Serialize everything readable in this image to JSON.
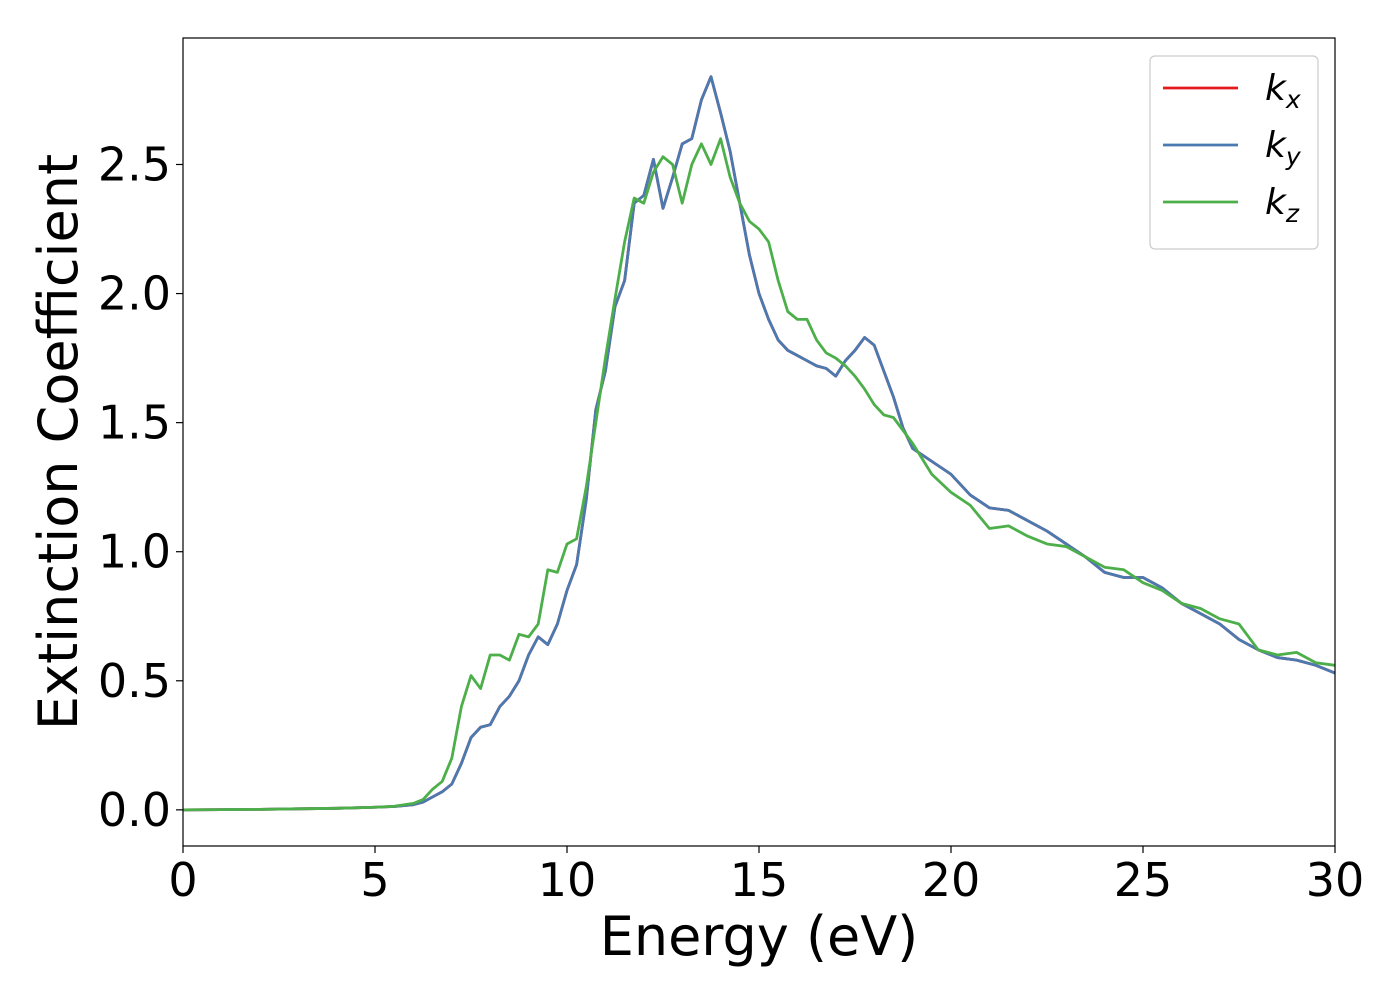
{
  "chart_data": {
    "type": "line",
    "x_label": "Energy (eV)",
    "y_label": "Extinction Coefficient",
    "xlim": [
      0,
      30
    ],
    "ylim": [
      -0.14,
      2.99
    ],
    "xticks": [
      0,
      5,
      10,
      15,
      20,
      25,
      30
    ],
    "yticks": [
      {
        "value": 0,
        "label": "0.0"
      },
      0.5,
      {
        "value": 1,
        "label": "1.0"
      },
      1.5,
      {
        "value": 2,
        "label": "2.0"
      },
      2.5
    ],
    "legend": "upper right",
    "x": [
      0,
      1,
      2,
      3,
      4,
      5,
      5.5,
      6,
      6.25,
      6.5,
      6.75,
      7,
      7.25,
      7.5,
      7.75,
      8,
      8.25,
      8.5,
      8.75,
      9,
      9.25,
      9.5,
      9.75,
      10,
      10.25,
      10.5,
      10.75,
      11,
      11.25,
      11.5,
      11.75,
      12,
      12.25,
      12.5,
      12.75,
      13,
      13.25,
      13.5,
      13.75,
      14,
      14.25,
      14.5,
      14.75,
      15,
      15.25,
      15.5,
      15.75,
      16,
      16.25,
      16.5,
      16.75,
      17,
      17.25,
      17.5,
      17.75,
      18,
      18.25,
      18.5,
      18.75,
      19,
      19.5,
      20,
      20.5,
      21,
      21.5,
      22,
      22.5,
      23,
      23.5,
      24,
      24.5,
      25,
      25.5,
      26,
      26.5,
      27,
      27.5,
      28,
      28.5,
      29,
      29.5,
      30
    ],
    "series": [
      {
        "name": "kx",
        "color": "#e41a1c",
        "values": [
          0,
          0.001,
          0.002,
          0.004,
          0.006,
          0.01,
          0.013,
          0.02,
          0.03,
          0.05,
          0.07,
          0.1,
          0.18,
          0.28,
          0.32,
          0.33,
          0.4,
          0.44,
          0.5,
          0.6,
          0.67,
          0.64,
          0.72,
          0.85,
          0.95,
          1.2,
          1.55,
          1.7,
          1.95,
          2.05,
          2.35,
          2.38,
          2.52,
          2.33,
          2.45,
          2.58,
          2.6,
          2.75,
          2.84,
          2.7,
          2.55,
          2.35,
          2.15,
          2.0,
          1.9,
          1.82,
          1.78,
          1.76,
          1.74,
          1.72,
          1.71,
          1.68,
          1.74,
          1.78,
          1.83,
          1.8,
          1.7,
          1.6,
          1.48,
          1.4,
          1.35,
          1.3,
          1.22,
          1.17,
          1.16,
          1.12,
          1.08,
          1.03,
          0.98,
          0.92,
          0.9,
          0.9,
          0.86,
          0.8,
          0.76,
          0.72,
          0.66,
          0.62,
          0.59,
          0.58,
          0.56,
          0.53
        ]
      },
      {
        "name": "ky",
        "color": "#4a7ab0",
        "values": [
          0,
          0.001,
          0.002,
          0.004,
          0.006,
          0.01,
          0.013,
          0.02,
          0.03,
          0.05,
          0.07,
          0.1,
          0.18,
          0.28,
          0.32,
          0.33,
          0.4,
          0.44,
          0.5,
          0.6,
          0.67,
          0.64,
          0.72,
          0.85,
          0.95,
          1.2,
          1.55,
          1.7,
          1.95,
          2.05,
          2.35,
          2.38,
          2.52,
          2.33,
          2.45,
          2.58,
          2.6,
          2.75,
          2.84,
          2.7,
          2.55,
          2.35,
          2.15,
          2.0,
          1.9,
          1.82,
          1.78,
          1.76,
          1.74,
          1.72,
          1.71,
          1.68,
          1.74,
          1.78,
          1.83,
          1.8,
          1.7,
          1.6,
          1.48,
          1.4,
          1.35,
          1.3,
          1.22,
          1.17,
          1.16,
          1.12,
          1.08,
          1.03,
          0.98,
          0.92,
          0.9,
          0.9,
          0.86,
          0.8,
          0.76,
          0.72,
          0.66,
          0.62,
          0.59,
          0.58,
          0.56,
          0.53
        ]
      },
      {
        "name": "kz",
        "color": "#4daf4a",
        "values": [
          0,
          0.001,
          0.002,
          0.004,
          0.006,
          0.01,
          0.014,
          0.025,
          0.04,
          0.08,
          0.11,
          0.2,
          0.4,
          0.52,
          0.47,
          0.6,
          0.6,
          0.58,
          0.68,
          0.67,
          0.72,
          0.93,
          0.92,
          1.03,
          1.05,
          1.25,
          1.5,
          1.75,
          1.98,
          2.2,
          2.37,
          2.35,
          2.47,
          2.53,
          2.5,
          2.35,
          2.5,
          2.58,
          2.5,
          2.6,
          2.45,
          2.35,
          2.28,
          2.25,
          2.2,
          2.05,
          1.93,
          1.9,
          1.9,
          1.82,
          1.77,
          1.75,
          1.72,
          1.68,
          1.63,
          1.57,
          1.53,
          1.52,
          1.47,
          1.42,
          1.3,
          1.23,
          1.18,
          1.09,
          1.1,
          1.06,
          1.03,
          1.02,
          0.98,
          0.94,
          0.93,
          0.88,
          0.85,
          0.8,
          0.78,
          0.74,
          0.72,
          0.62,
          0.6,
          0.61,
          0.57,
          0.56
        ]
      }
    ]
  }
}
